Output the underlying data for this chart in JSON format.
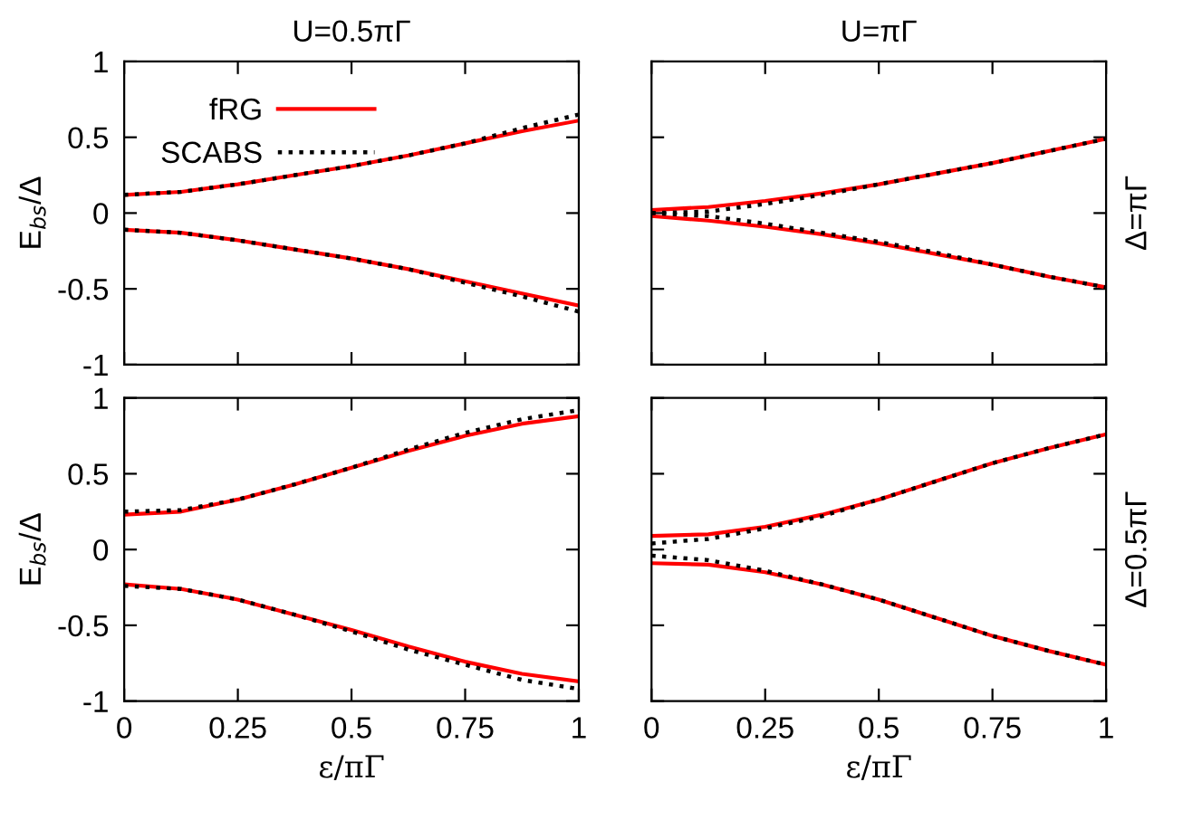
{
  "chart_data": [
    {
      "type": "line",
      "title": "U=0.5πΓ",
      "ylabel": "E$_{bs}$/Δ",
      "x": [
        0,
        0.125,
        0.25,
        0.375,
        0.5,
        0.625,
        0.75,
        0.875,
        1
      ],
      "xlim": [
        0,
        1
      ],
      "ylim": [
        -1,
        1
      ],
      "xticks": [
        0,
        0.25,
        0.5,
        0.75,
        1
      ],
      "yticks": [
        -1,
        -0.5,
        0,
        0.5,
        1
      ],
      "tick_labels": "y",
      "legend": "top left",
      "grid": false,
      "series": [
        {
          "name": "fRG",
          "color": "#ff0000",
          "line_style": "solid",
          "values": [
            0.12,
            0.14,
            0.19,
            0.25,
            0.31,
            0.38,
            0.46,
            0.54,
            0.61
          ]
        },
        {
          "name": "SCABS",
          "color": "#000000",
          "line_style": "dotted",
          "values": [
            0.12,
            0.14,
            0.19,
            0.25,
            0.31,
            0.38,
            0.46,
            0.56,
            0.65
          ]
        },
        {
          "color": "#ff0000",
          "line_style": "solid",
          "values": [
            -0.11,
            -0.13,
            -0.18,
            -0.24,
            -0.3,
            -0.37,
            -0.45,
            -0.53,
            -0.61
          ]
        },
        {
          "color": "#000000",
          "line_style": "dotted",
          "values": [
            -0.11,
            -0.13,
            -0.18,
            -0.24,
            -0.3,
            -0.37,
            -0.46,
            -0.55,
            -0.65
          ]
        }
      ]
    },
    {
      "type": "line",
      "title": "U=πΓ",
      "annotations": [
        "Δ=πΓ"
      ],
      "x": [
        0,
        0.125,
        0.25,
        0.375,
        0.5,
        0.625,
        0.75,
        0.875,
        1
      ],
      "xlim": [
        0,
        1
      ],
      "ylim": [
        -1,
        1
      ],
      "xticks": [
        0,
        0.25,
        0.5,
        0.75,
        1
      ],
      "yticks": [
        -1,
        -0.5,
        0,
        0.5,
        1
      ],
      "tick_labels": false,
      "grid": false,
      "series": [
        {
          "color": "#ff0000",
          "line_style": "solid",
          "values": [
            0.02,
            0.04,
            0.08,
            0.13,
            0.19,
            0.26,
            0.33,
            0.41,
            0.49
          ]
        },
        {
          "color": "#000000",
          "line_style": "dotted",
          "values": [
            0.0,
            0.01,
            0.06,
            0.12,
            0.19,
            0.26,
            0.33,
            0.41,
            0.49
          ]
        },
        {
          "color": "#ff0000",
          "line_style": "solid",
          "values": [
            -0.02,
            -0.05,
            -0.09,
            -0.14,
            -0.2,
            -0.27,
            -0.34,
            -0.42,
            -0.49
          ]
        },
        {
          "color": "#000000",
          "line_style": "dotted",
          "values": [
            0.0,
            -0.02,
            -0.07,
            -0.13,
            -0.19,
            -0.26,
            -0.34,
            -0.42,
            -0.49
          ]
        }
      ]
    },
    {
      "type": "line",
      "xlabel": "ε/πΓ",
      "ylabel": "E$_{bs}$/Δ",
      "x": [
        0,
        0.125,
        0.25,
        0.375,
        0.5,
        0.625,
        0.75,
        0.875,
        1
      ],
      "xlim": [
        0,
        1
      ],
      "ylim": [
        -1,
        1
      ],
      "xticks": [
        0,
        0.25,
        0.5,
        0.75,
        1
      ],
      "yticks": [
        -1,
        -0.5,
        0,
        0.5,
        1
      ],
      "grid": false,
      "series": [
        {
          "color": "#ff0000",
          "line_style": "solid",
          "values": [
            0.23,
            0.25,
            0.33,
            0.43,
            0.54,
            0.65,
            0.75,
            0.83,
            0.88
          ]
        },
        {
          "color": "#000000",
          "line_style": "dotted",
          "values": [
            0.25,
            0.26,
            0.33,
            0.43,
            0.54,
            0.66,
            0.77,
            0.86,
            0.92
          ]
        },
        {
          "color": "#ff0000",
          "line_style": "solid",
          "values": [
            -0.23,
            -0.26,
            -0.33,
            -0.43,
            -0.53,
            -0.64,
            -0.74,
            -0.82,
            -0.87
          ]
        },
        {
          "color": "#000000",
          "line_style": "dotted",
          "values": [
            -0.24,
            -0.26,
            -0.33,
            -0.43,
            -0.54,
            -0.66,
            -0.76,
            -0.86,
            -0.92
          ]
        }
      ]
    },
    {
      "type": "line",
      "xlabel": "ε/πΓ",
      "annotations": [
        "Δ=0.5πΓ"
      ],
      "x": [
        0,
        0.125,
        0.25,
        0.375,
        0.5,
        0.625,
        0.75,
        0.875,
        1
      ],
      "xlim": [
        0,
        1
      ],
      "ylim": [
        -1,
        1
      ],
      "xticks": [
        0,
        0.25,
        0.5,
        0.75,
        1
      ],
      "yticks": [
        -1,
        -0.5,
        0,
        0.5,
        1
      ],
      "tick_labels": "x",
      "grid": false,
      "series": [
        {
          "color": "#ff0000",
          "line_style": "solid",
          "values": [
            0.09,
            0.1,
            0.15,
            0.23,
            0.33,
            0.45,
            0.57,
            0.67,
            0.76
          ]
        },
        {
          "color": "#000000",
          "line_style": "dotted",
          "values": [
            0.04,
            0.07,
            0.14,
            0.22,
            0.33,
            0.45,
            0.57,
            0.67,
            0.76
          ]
        },
        {
          "color": "#ff0000",
          "line_style": "solid",
          "values": [
            -0.09,
            -0.1,
            -0.15,
            -0.23,
            -0.33,
            -0.45,
            -0.57,
            -0.67,
            -0.76
          ]
        },
        {
          "color": "#000000",
          "line_style": "dotted",
          "values": [
            -0.04,
            -0.07,
            -0.14,
            -0.23,
            -0.33,
            -0.45,
            -0.57,
            -0.67,
            -0.76
          ]
        }
      ]
    }
  ]
}
